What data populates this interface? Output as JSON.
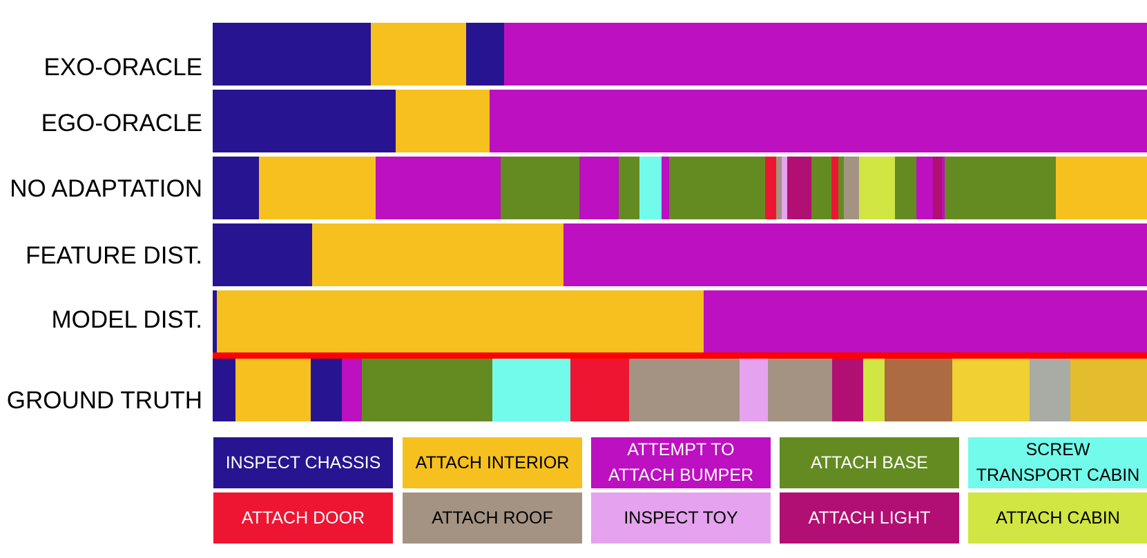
{
  "rows": [
    {
      "label": "EXO-ORACLE",
      "segments": [
        [
          0,
          229,
          "#271490"
        ],
        [
          229,
          367,
          "#f6c11e"
        ],
        [
          367,
          422,
          "#271490"
        ],
        [
          422,
          1353,
          "#bc10c1"
        ]
      ]
    },
    {
      "label": "EGO-ORACLE",
      "segments": [
        [
          0,
          265,
          "#271490"
        ],
        [
          265,
          401,
          "#f6c11e"
        ],
        [
          401,
          1353,
          "#bc10c1"
        ]
      ]
    },
    {
      "label": "NO ADAPTATION",
      "segments": [
        [
          0,
          67,
          "#271490"
        ],
        [
          67,
          236,
          "#f6c11e"
        ],
        [
          236,
          417,
          "#bc10c1"
        ],
        [
          417,
          531,
          "#648b22"
        ],
        [
          531,
          588,
          "#bc10c1"
        ],
        [
          588,
          618,
          "#648b22"
        ],
        [
          618,
          650,
          "#72fbeb"
        ],
        [
          650,
          661,
          "#bc10c1"
        ],
        [
          661,
          800,
          "#648b22"
        ],
        [
          800,
          816,
          "#ee1533"
        ],
        [
          816,
          824,
          "#a49382"
        ],
        [
          824,
          832,
          "#e5a2ee"
        ],
        [
          832,
          867,
          "#b20f74"
        ],
        [
          867,
          896,
          "#648b22"
        ],
        [
          896,
          906,
          "#ee1533"
        ],
        [
          906,
          914,
          "#648b22"
        ],
        [
          914,
          936,
          "#a49382"
        ],
        [
          936,
          988,
          "#d1e543"
        ],
        [
          988,
          1019,
          "#648b22"
        ],
        [
          1019,
          1043,
          "#bc10c1"
        ],
        [
          1043,
          1056,
          "#b20f74"
        ],
        [
          1056,
          1060,
          "#bc10c1"
        ],
        [
          1060,
          1221,
          "#648b22"
        ],
        [
          1221,
          1353,
          "#f6c11e"
        ]
      ]
    },
    {
      "label": "FEATURE DIST.",
      "segments": [
        [
          0,
          144,
          "#271490"
        ],
        [
          144,
          508,
          "#f6c11e"
        ],
        [
          508,
          1353,
          "#bc10c1"
        ]
      ]
    },
    {
      "label": "MODEL DIST.",
      "segments": [
        [
          0,
          6,
          "#271490"
        ],
        [
          6,
          711,
          "#f6c11e"
        ],
        [
          711,
          1353,
          "#bc10c1"
        ]
      ]
    },
    {
      "label": "GROUND TRUTH",
      "segments": [
        [
          0,
          33,
          "#271490"
        ],
        [
          33,
          142,
          "#f6c11e"
        ],
        [
          142,
          187,
          "#271490"
        ],
        [
          187,
          216,
          "#bc10c1"
        ],
        [
          216,
          405,
          "#648b22"
        ],
        [
          405,
          518,
          "#72fbeb"
        ],
        [
          518,
          603,
          "#ee1533"
        ],
        [
          603,
          763,
          "#a49382"
        ],
        [
          763,
          804,
          "#e5a2ee"
        ],
        [
          804,
          897,
          "#a49382"
        ],
        [
          897,
          942,
          "#b20f74"
        ],
        [
          942,
          973,
          "#d1e543"
        ],
        [
          973,
          1071,
          "#ac6b40"
        ],
        [
          1071,
          1183,
          "#f0d032"
        ],
        [
          1183,
          1242,
          "#a8aca5"
        ],
        [
          1242,
          1353,
          "#e3bd2e"
        ]
      ]
    }
  ],
  "legend": [
    {
      "label": "INSPECT CHASSIS",
      "color": "#271490",
      "text_color": "#ffffff"
    },
    {
      "label": "ATTACH INTERIOR",
      "color": "#f6c11e",
      "text_color": "#000000"
    },
    {
      "label": "ATTEMPT TO\nATTACH BUMPER",
      "color": "#bc10c1",
      "text_color": "#ffffff"
    },
    {
      "label": "ATTACH BASE",
      "color": "#648b22",
      "text_color": "#ffffff"
    },
    {
      "label": "SCREW\nTRANSPORT CABIN",
      "color": "#72fbeb",
      "text_color": "#000000"
    },
    {
      "label": "ATTACH DOOR",
      "color": "#ee1533",
      "text_color": "#ffffff"
    },
    {
      "label": "ATTACH ROOF",
      "color": "#a49382",
      "text_color": "#000000"
    },
    {
      "label": "INSPECT TOY",
      "color": "#e5a2ee",
      "text_color": "#000000"
    },
    {
      "label": "ATTACH LIGHT",
      "color": "#b20f74",
      "text_color": "#ffffff"
    },
    {
      "label": "ATTACH CABIN",
      "color": "#d1e543",
      "text_color": "#000000"
    }
  ]
}
